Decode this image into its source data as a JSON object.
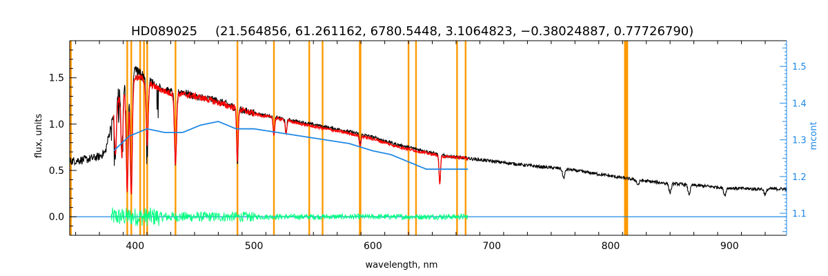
{
  "chart_data": {
    "type": "line",
    "title": "HD089025",
    "params_text": "(21.564856, 61.261162, 6780.5448, 3.1064823, −0.38024887, 0.77726790)",
    "xlabel": "wavelength, nm",
    "ylabel": "flux, units",
    "y2label": "mcont",
    "xlim": [
      345,
      948
    ],
    "ylim": [
      -0.2,
      1.9
    ],
    "y2lim": [
      1.04,
      1.57
    ],
    "x_ticks": [
      400,
      500,
      600,
      700,
      800,
      900
    ],
    "y_ticks": [
      0.0,
      0.5,
      1.0,
      1.5
    ],
    "y_tick_labels": [
      "0.0",
      "0.5",
      "1.0",
      "1.5"
    ],
    "y2_ticks": [
      1.1,
      1.2,
      1.3,
      1.4,
      1.5
    ],
    "y2_tick_labels": [
      "1.1",
      "1.2",
      "1.3",
      "1.4",
      "1.5"
    ],
    "grid": false,
    "colors": {
      "observed": "#000000",
      "model": "#ff0000",
      "continuum": "#1e88e5",
      "residuals": "#00ff80",
      "masks": "#ff9900",
      "right_axis": "#1e88e5"
    },
    "masked_lines": [
      346,
      393.4,
      396.8,
      404.3,
      407.5,
      410.2,
      434.0,
      486.1,
      516.8,
      546.5,
      557.7,
      589.0,
      589.6,
      630.0,
      636.3,
      670.8,
      678.0,
      812,
      813,
      814
    ],
    "series": [
      {
        "key": "observed",
        "x": [
          345,
          360,
          370,
          375,
          380,
          385,
          390,
          395,
          400,
          405,
          410,
          420,
          430,
          440,
          450,
          460,
          470,
          480,
          490,
          500,
          520,
          540,
          560,
          580,
          600,
          620,
          640,
          660,
          680,
          700,
          720,
          740,
          760,
          780,
          800,
          820,
          840,
          860,
          880,
          900,
          920,
          948
        ],
        "y": [
          0.6,
          0.62,
          0.65,
          0.7,
          1.0,
          1.35,
          1.45,
          1.55,
          1.6,
          1.55,
          1.5,
          1.4,
          1.35,
          1.35,
          1.3,
          1.28,
          1.25,
          1.2,
          1.15,
          1.12,
          1.07,
          1.02,
          0.97,
          0.92,
          0.86,
          0.78,
          0.72,
          0.66,
          0.63,
          0.6,
          0.57,
          0.54,
          0.52,
          0.48,
          0.44,
          0.4,
          0.37,
          0.35,
          0.33,
          0.31,
          0.3,
          0.3
        ]
      },
      {
        "key": "model",
        "x": [
          382,
          390,
          395,
          400,
          405,
          410,
          420,
          430,
          440,
          450,
          460,
          470,
          480,
          490,
          500,
          520,
          540,
          560,
          580,
          600,
          620,
          640,
          660,
          680
        ],
        "y": [
          1.2,
          1.35,
          1.45,
          1.5,
          1.5,
          1.45,
          1.38,
          1.33,
          1.32,
          1.3,
          1.27,
          1.23,
          1.19,
          1.15,
          1.11,
          1.06,
          1.0,
          0.95,
          0.9,
          0.84,
          0.76,
          0.7,
          0.65,
          0.63
        ]
      },
      {
        "key": "continuum",
        "axis": "y2",
        "x": [
          382,
          395,
          410,
          425,
          440,
          455,
          470,
          485,
          500,
          520,
          540,
          560,
          580,
          600,
          615,
          630,
          645,
          660,
          680
        ],
        "y": [
          1.27,
          1.31,
          1.33,
          1.32,
          1.32,
          1.34,
          1.35,
          1.33,
          1.33,
          1.32,
          1.31,
          1.3,
          1.29,
          1.27,
          1.26,
          1.24,
          1.22,
          1.22,
          1.22
        ]
      },
      {
        "key": "residuals",
        "x": [
          380,
          680
        ],
        "y": [
          0.0,
          0.0
        ]
      },
      {
        "key": "zero_line",
        "x": [
          345,
          948
        ],
        "y": [
          0.0,
          0.0
        ]
      }
    ],
    "absorption_lines": [
      {
        "x": 383.5,
        "depth": 0.6
      },
      {
        "x": 388.9,
        "depth": 0.7
      },
      {
        "x": 393.4,
        "depth": 1.2
      },
      {
        "x": 396.8,
        "depth": 1.3
      },
      {
        "x": 410.2,
        "depth": 0.7
      },
      {
        "x": 434.0,
        "depth": 0.8
      },
      {
        "x": 486.1,
        "depth": 0.6
      },
      {
        "x": 516.8,
        "depth": 0.2
      },
      {
        "x": 527.0,
        "depth": 0.15
      },
      {
        "x": 589.3,
        "depth": 0.12
      },
      {
        "x": 656.3,
        "depth": 0.32
      },
      {
        "x": 760.5,
        "depth": 0.1
      },
      {
        "x": 823,
        "depth": 0.05
      },
      {
        "x": 850,
        "depth": 0.1
      },
      {
        "x": 866,
        "depth": 0.1
      },
      {
        "x": 896,
        "depth": 0.08
      },
      {
        "x": 930,
        "depth": 0.06
      }
    ]
  }
}
